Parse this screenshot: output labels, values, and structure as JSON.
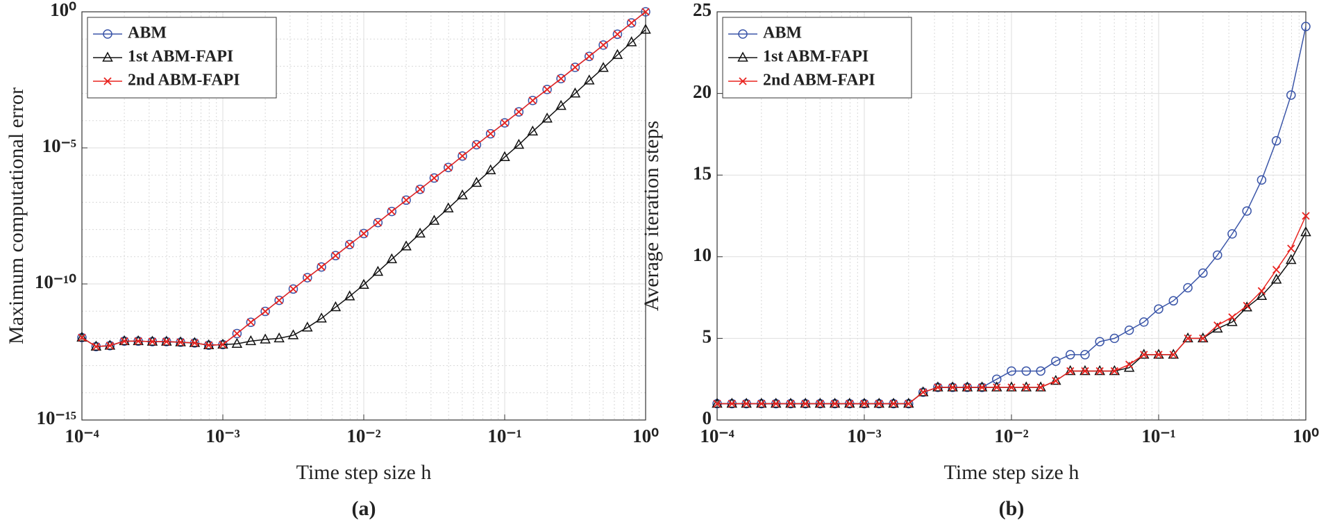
{
  "chart_data": [
    {
      "type": "line",
      "title": "(a)",
      "xlabel": "Time step size h",
      "ylabel": "Maximum computational error",
      "xlog": true,
      "ylog": true,
      "grid": true,
      "legend": "upper left",
      "xlim": [
        0.0001,
        1
      ],
      "ylim": [
        1e-15,
        1
      ],
      "xticks": [
        {
          "value": 0.0001,
          "label": "10⁻⁴"
        },
        {
          "value": 0.001,
          "label": "10⁻³"
        },
        {
          "value": 0.01,
          "label": "10⁻²"
        },
        {
          "value": 0.1,
          "label": "10⁻¹"
        },
        {
          "value": 1,
          "label": "10⁰"
        }
      ],
      "yticks": [
        {
          "value": 1e-15,
          "label": "10⁻¹⁵"
        },
        {
          "value": 1e-10,
          "label": "10⁻¹⁰"
        },
        {
          "value": 1e-05,
          "label": "10⁻⁵"
        },
        {
          "value": 1,
          "label": "10⁰"
        }
      ],
      "x": [
        0.0001,
        0.000126,
        0.000158,
        0.0002,
        0.000251,
        0.000316,
        0.000398,
        0.000501,
        0.000631,
        0.000794,
        0.001,
        0.00126,
        0.00158,
        0.002,
        0.00251,
        0.00316,
        0.00398,
        0.00501,
        0.00631,
        0.00794,
        0.01,
        0.0126,
        0.0158,
        0.02,
        0.0251,
        0.0316,
        0.0398,
        0.0501,
        0.0631,
        0.0794,
        0.1,
        0.126,
        0.158,
        0.2,
        0.251,
        0.316,
        0.398,
        0.501,
        0.631,
        0.794,
        1
      ],
      "series": [
        {
          "name": "ABM",
          "color": "#3a55a8",
          "marker": "o",
          "values": [
            1.07e-12,
            5e-13,
            5.4e-13,
            7.9e-13,
            7.9e-13,
            7.6e-13,
            7.6e-13,
            7.2e-13,
            6.8e-13,
            5.6e-13,
            5.9e-13,
            1.5e-12,
            3.9e-12,
            9.8e-12,
            2.5e-11,
            6.5e-11,
            1.7e-10,
            4.2e-10,
            1.1e-09,
            2.8e-09,
            7.1e-09,
            1.8e-08,
            4.6e-08,
            1.2e-07,
            3e-07,
            7.8e-07,
            1.9e-06,
            5e-06,
            1.3e-05,
            3.3e-05,
            8.3e-05,
            0.00021,
            0.00055,
            0.0014,
            0.0035,
            0.0091,
            0.023,
            0.06,
            0.15,
            0.39,
            1.0
          ]
        },
        {
          "name": "1st ABM-FAPI",
          "color": "#111111",
          "marker": "^",
          "values": [
            1.07e-12,
            5e-13,
            5.4e-13,
            7.9e-13,
            7.9e-13,
            7.6e-13,
            7.6e-13,
            7.2e-13,
            6.8e-13,
            5.6e-13,
            5.9e-13,
            6.3e-13,
            7.9e-13,
            9.1e-13,
            1e-12,
            1.3e-12,
            2.5e-12,
            5.4e-12,
            1.4e-11,
            3.5e-11,
            9.3e-11,
            2.8e-10,
            8.1e-10,
            2.4e-09,
            7.1e-09,
            2.1e-08,
            6e-08,
            1.8e-07,
            5.2e-07,
            1.5e-06,
            4.6e-06,
            1.3e-05,
            4e-05,
            0.00012,
            0.00035,
            0.001,
            0.003,
            0.0087,
            0.026,
            0.076,
            0.22
          ]
        },
        {
          "name": "2nd ABM-FAPI",
          "color": "#e8231f",
          "marker": "x",
          "values": [
            1.07e-12,
            5e-13,
            5.4e-13,
            7.9e-13,
            7.9e-13,
            7.6e-13,
            7.6e-13,
            7.2e-13,
            6.8e-13,
            5.6e-13,
            5.9e-13,
            1.5e-12,
            3.9e-12,
            9.8e-12,
            2.5e-11,
            6.5e-11,
            1.7e-10,
            4.2e-10,
            1.1e-09,
            2.8e-09,
            7.1e-09,
            1.8e-08,
            4.6e-08,
            1.2e-07,
            3e-07,
            7.8e-07,
            1.9e-06,
            5e-06,
            1.3e-05,
            3.3e-05,
            8.3e-05,
            0.00021,
            0.00055,
            0.0014,
            0.0035,
            0.0091,
            0.023,
            0.06,
            0.15,
            0.39,
            1.0
          ]
        }
      ]
    },
    {
      "type": "line",
      "title": "(b)",
      "xlabel": "Time step size h",
      "ylabel": "Average iteration steps",
      "xlog": true,
      "ylog": false,
      "grid": true,
      "legend": "upper left",
      "xlim": [
        0.0001,
        1
      ],
      "ylim": [
        0,
        25
      ],
      "xticks": [
        {
          "value": 0.0001,
          "label": "10⁻⁴"
        },
        {
          "value": 0.001,
          "label": "10⁻³"
        },
        {
          "value": 0.01,
          "label": "10⁻²"
        },
        {
          "value": 0.1,
          "label": "10⁻¹"
        },
        {
          "value": 1,
          "label": "10⁰"
        }
      ],
      "yticks": [
        0,
        5,
        10,
        15,
        20,
        25
      ],
      "x": [
        0.0001,
        0.000126,
        0.000158,
        0.0002,
        0.000251,
        0.000316,
        0.000398,
        0.000501,
        0.000631,
        0.000794,
        0.001,
        0.00126,
        0.00158,
        0.002,
        0.00251,
        0.00316,
        0.00398,
        0.00501,
        0.00631,
        0.00794,
        0.01,
        0.0126,
        0.0158,
        0.02,
        0.0251,
        0.0316,
        0.0398,
        0.0501,
        0.0631,
        0.0794,
        0.1,
        0.126,
        0.158,
        0.2,
        0.251,
        0.316,
        0.398,
        0.501,
        0.631,
        0.794,
        1
      ],
      "series": [
        {
          "name": "ABM",
          "color": "#3a55a8",
          "marker": "o",
          "values": [
            1,
            1,
            1,
            1,
            1,
            1,
            1,
            1,
            1,
            1,
            1,
            1,
            1,
            1,
            1.7,
            2,
            2,
            2,
            2,
            2.5,
            3,
            3,
            3,
            3.6,
            4,
            4,
            4.8,
            5,
            5.5,
            6,
            6.8,
            7.3,
            8.1,
            9,
            10.1,
            11.4,
            12.8,
            14.7,
            17.1,
            19.9,
            24.1
          ]
        },
        {
          "name": "1st ABM-FAPI",
          "color": "#111111",
          "marker": "^",
          "values": [
            1,
            1,
            1,
            1,
            1,
            1,
            1,
            1,
            1,
            1,
            1,
            1,
            1,
            1,
            1.7,
            2,
            2,
            2,
            2,
            2,
            2,
            2,
            2,
            2.4,
            3,
            3,
            3,
            3,
            3.2,
            4,
            4,
            4,
            5,
            5,
            5.6,
            6,
            6.9,
            7.6,
            8.6,
            9.8,
            11.5
          ]
        },
        {
          "name": "2nd ABM-FAPI",
          "color": "#e8231f",
          "marker": "x",
          "values": [
            1,
            1,
            1,
            1,
            1,
            1,
            1,
            1,
            1,
            1,
            1,
            1,
            1,
            1,
            1.7,
            2,
            2,
            2,
            2,
            2,
            2,
            2,
            2,
            2.4,
            3,
            3,
            3,
            3,
            3.4,
            4,
            4,
            4,
            5,
            5,
            5.8,
            6.3,
            7,
            7.9,
            9.2,
            10.5,
            12.5
          ]
        }
      ]
    }
  ]
}
